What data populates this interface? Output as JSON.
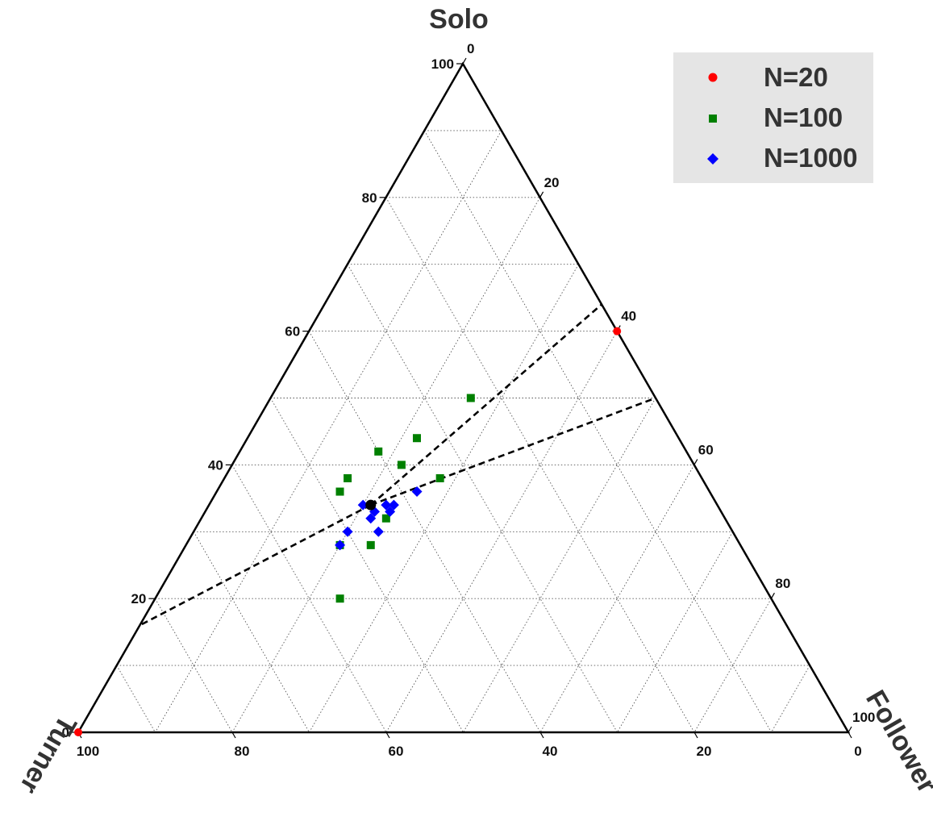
{
  "chart_data": {
    "type": "scatter",
    "subtype": "ternary",
    "axes": {
      "top": {
        "label": "Solo",
        "ticks": [
          "0",
          "20",
          "40",
          "60",
          "80",
          "100"
        ]
      },
      "left": {
        "label": "Turner",
        "ticks": [
          "100",
          "80",
          "60",
          "40",
          "20",
          "0"
        ]
      },
      "right": {
        "label": "Follower",
        "ticks": [
          "100",
          "80",
          "60",
          "40",
          "20",
          "0"
        ]
      },
      "range": [
        0,
        100
      ],
      "grid": true,
      "grid_step": 10,
      "tick_step": 20
    },
    "legend": {
      "position": "top-right",
      "entries": [
        {
          "name": "N=20",
          "marker": "circle",
          "color": "#ff0000"
        },
        {
          "name": "N=100",
          "marker": "square",
          "color": "#008000"
        },
        {
          "name": "N=1000",
          "marker": "diamond",
          "color": "#0000ff"
        }
      ]
    },
    "series": [
      {
        "name": "N=20",
        "marker": "circle",
        "color": "#ff0000",
        "points": [
          {
            "solo": 60,
            "turner": 0,
            "follower": 40
          },
          {
            "solo": 0,
            "turner": 100,
            "follower": 0
          }
        ]
      },
      {
        "name": "N=100",
        "marker": "square",
        "color": "#008000",
        "points": [
          {
            "solo": 50,
            "turner": 24,
            "follower": 26
          },
          {
            "solo": 44,
            "turner": 34,
            "follower": 22
          },
          {
            "solo": 42,
            "turner": 40,
            "follower": 18
          },
          {
            "solo": 40,
            "turner": 38,
            "follower": 22
          },
          {
            "solo": 38,
            "turner": 46,
            "follower": 16
          },
          {
            "solo": 38,
            "turner": 34,
            "follower": 28
          },
          {
            "solo": 36,
            "turner": 48,
            "follower": 16
          },
          {
            "solo": 32,
            "turner": 44,
            "follower": 24
          },
          {
            "solo": 28,
            "turner": 52,
            "follower": 20
          },
          {
            "solo": 28,
            "turner": 48,
            "follower": 24
          },
          {
            "solo": 20,
            "turner": 56,
            "follower": 24
          }
        ]
      },
      {
        "name": "N=1000",
        "marker": "diamond",
        "color": "#0000ff",
        "points": [
          {
            "solo": 36,
            "turner": 38,
            "follower": 26
          },
          {
            "solo": 34,
            "turner": 46,
            "follower": 20
          },
          {
            "solo": 34,
            "turner": 43,
            "follower": 23
          },
          {
            "solo": 34,
            "turner": 42,
            "follower": 24
          },
          {
            "solo": 33,
            "turner": 45,
            "follower": 22
          },
          {
            "solo": 33,
            "turner": 43,
            "follower": 24
          },
          {
            "solo": 32,
            "turner": 46,
            "follower": 22
          },
          {
            "solo": 30,
            "turner": 50,
            "follower": 20
          },
          {
            "solo": 30,
            "turner": 46,
            "follower": 24
          },
          {
            "solo": 28,
            "turner": 52,
            "follower": 20
          }
        ]
      }
    ],
    "centroid": {
      "solo": 34,
      "turner": 45,
      "follower": 21,
      "color": "#000000"
    },
    "reference_lines": [
      {
        "from": {
          "solo": 34,
          "turner": 45,
          "follower": 21
        },
        "to": {
          "solo": 64,
          "turner": 0,
          "follower": 36
        }
      },
      {
        "from": {
          "solo": 34,
          "turner": 45,
          "follower": 21
        },
        "to": {
          "solo": 50,
          "turner": 0,
          "follower": 50
        }
      },
      {
        "from": {
          "solo": 34,
          "turner": 45,
          "follower": 21
        },
        "to": {
          "solo": 16,
          "turner": 84,
          "follower": 0
        }
      }
    ]
  }
}
